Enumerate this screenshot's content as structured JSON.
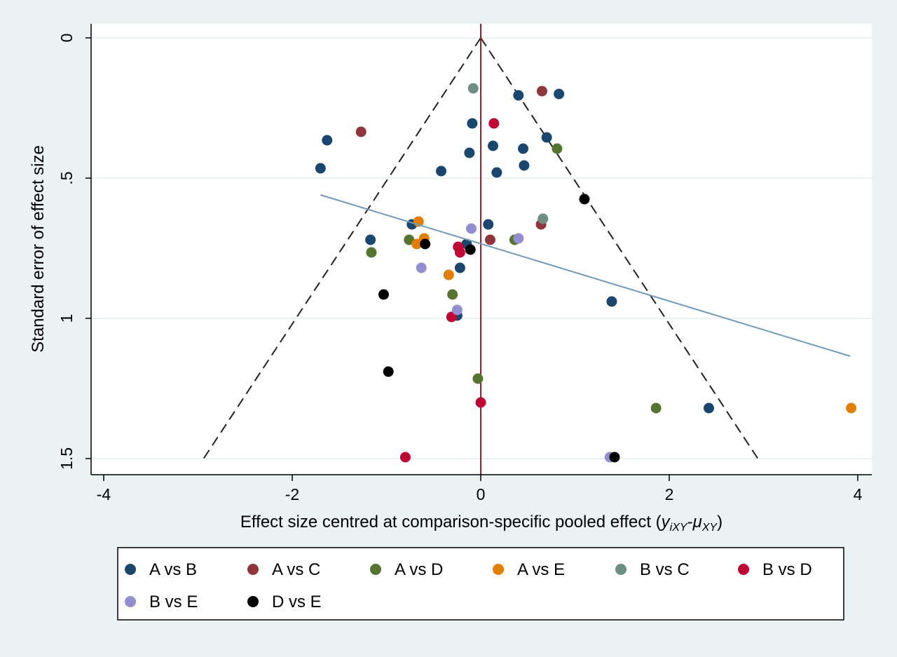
{
  "chart_data": {
    "type": "scatter",
    "title": "",
    "xlabel": {
      "prefix": "Effect size centred at comparison-specific pooled effect (",
      "y_sym": "y",
      "y_sub": "iXY",
      "minus": "-",
      "mu_sym": "μ",
      "mu_sub": "XY",
      "suffix": ")"
    },
    "ylabel": "Standard error of effect size",
    "xlim": [
      -4,
      4
    ],
    "ylim": [
      0,
      1.5
    ],
    "y_reversed": true,
    "x_ticks": [
      {
        "value": -4,
        "label": "-4"
      },
      {
        "value": -2,
        "label": "-2"
      },
      {
        "value": 0,
        "label": "0"
      },
      {
        "value": 2,
        "label": "2"
      },
      {
        "value": 4,
        "label": "4"
      }
    ],
    "y_ticks": [
      {
        "value": 0,
        "label": "0"
      },
      {
        "value": 0.5,
        "label": ".5"
      },
      {
        "value": 1,
        "label": "1"
      },
      {
        "value": 1.5,
        "label": "1.5"
      }
    ],
    "grid": "horizontal",
    "reference_line": {
      "x": 0,
      "color": "#b0182a"
    },
    "funnel": {
      "apex": [
        0,
        0
      ],
      "left_base": [
        -2.94,
        1.5
      ],
      "right_base": [
        2.94,
        1.5
      ],
      "style": "dashed"
    },
    "regression_line": {
      "x1": -1.7,
      "y1": 0.56,
      "x2": 3.92,
      "y2": 1.135,
      "color": "#6f9ab8"
    },
    "legend": {
      "position": "bottom",
      "columns": 6
    },
    "series": [
      {
        "name": "A vs B",
        "color": "#1a476f",
        "points": [
          [
            -1.63,
            0.365
          ],
          [
            -1.7,
            0.465
          ],
          [
            -1.17,
            0.72
          ],
          [
            -0.73,
            0.665
          ],
          [
            -0.42,
            0.475
          ],
          [
            -0.12,
            0.41
          ],
          [
            -0.09,
            0.305
          ],
          [
            0.4,
            0.205
          ],
          [
            0.83,
            0.2
          ],
          [
            0.13,
            0.385
          ],
          [
            0.17,
            0.48
          ],
          [
            0.45,
            0.395
          ],
          [
            0.46,
            0.455
          ],
          [
            0.7,
            0.355
          ],
          [
            0.08,
            0.665
          ],
          [
            -0.15,
            0.735
          ],
          [
            -0.22,
            0.82
          ],
          [
            -0.25,
            0.99
          ],
          [
            1.39,
            0.94
          ],
          [
            2.42,
            1.32
          ]
        ]
      },
      {
        "name": "A vs C",
        "color": "#90353b",
        "points": [
          [
            -1.27,
            0.335
          ],
          [
            0.65,
            0.19
          ],
          [
            0.1,
            0.72
          ],
          [
            0.64,
            0.665
          ]
        ]
      },
      {
        "name": "A vs D",
        "color": "#55752f",
        "points": [
          [
            -1.16,
            0.765
          ],
          [
            -0.76,
            0.72
          ],
          [
            -0.3,
            0.915
          ],
          [
            -0.03,
            1.215
          ],
          [
            0.81,
            0.395
          ],
          [
            0.36,
            0.72
          ],
          [
            1.86,
            1.32
          ]
        ]
      },
      {
        "name": "A vs E",
        "color": "#e37e00",
        "points": [
          [
            -0.66,
            0.655
          ],
          [
            -0.68,
            0.735
          ],
          [
            -0.6,
            0.715
          ],
          [
            -0.34,
            0.845
          ],
          [
            3.93,
            1.32
          ]
        ]
      },
      {
        "name": "B vs C",
        "color": "#6e8e84",
        "points": [
          [
            -0.08,
            0.18
          ],
          [
            0.66,
            0.645
          ]
        ]
      },
      {
        "name": "B vs D",
        "color": "#c10534",
        "points": [
          [
            0.14,
            0.305
          ],
          [
            -0.24,
            0.745
          ],
          [
            -0.22,
            0.765
          ],
          [
            -0.31,
            0.995
          ],
          [
            0.0,
            1.3
          ],
          [
            -0.8,
            1.495
          ]
        ]
      },
      {
        "name": "B vs E",
        "color": "#938dd2",
        "points": [
          [
            -0.63,
            0.82
          ],
          [
            -0.1,
            0.68
          ],
          [
            0.4,
            0.715
          ],
          [
            -0.25,
            0.97
          ],
          [
            1.37,
            1.495
          ]
        ]
      },
      {
        "name": "D vs E",
        "color": "#000000",
        "points": [
          [
            -1.03,
            0.915
          ],
          [
            -0.59,
            0.735
          ],
          [
            -0.11,
            0.755
          ],
          [
            1.1,
            0.575
          ],
          [
            -0.98,
            1.19
          ],
          [
            1.42,
            1.495
          ]
        ]
      }
    ]
  }
}
